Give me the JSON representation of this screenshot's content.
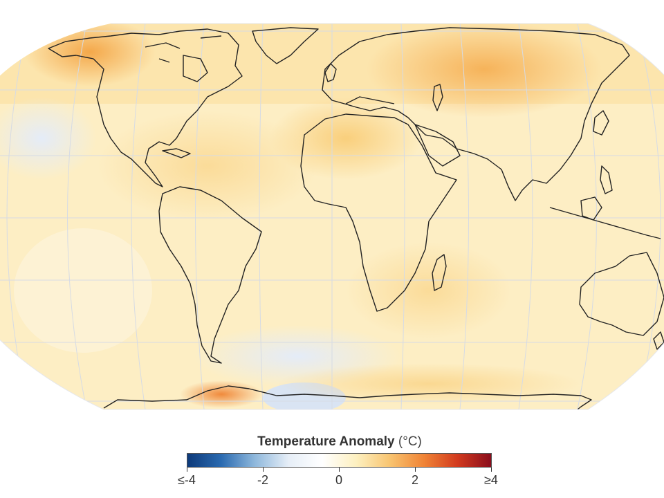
{
  "legend": {
    "title": "Temperature Anomaly",
    "unit": "(°C)",
    "ticks": [
      "≤-4",
      "-2",
      "0",
      "2",
      "≥4"
    ],
    "min": -4,
    "max": 4,
    "gradient_stops": [
      "#0d3a7a",
      "#2a6ab0",
      "#8fb8dc",
      "#e6eef7",
      "#ffffff",
      "#fdf0c0",
      "#f8c470",
      "#f08436",
      "#d23a1e",
      "#8a0d1c"
    ]
  },
  "colors": {
    "land_outline": "#222222",
    "graticule": "#d8dde6",
    "near_zero": "#fef4d6",
    "warm": "#fbdc94",
    "warmer": "#f6b255",
    "cool": "#e8eef8"
  }
}
